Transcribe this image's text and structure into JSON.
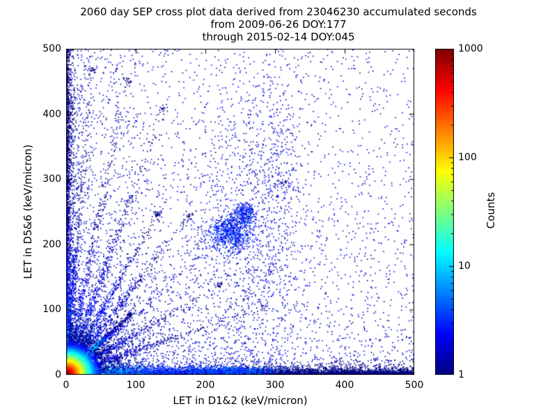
{
  "chart_data": {
    "type": "scatter",
    "title_lines": [
      "2060 day SEP cross plot data derived from 23046230 accumulated seconds",
      "from 2009-06-26 DOY:177",
      "through 2015-02-14 DOY:045"
    ],
    "xlabel": "LET in D1&2 (keV/micron)",
    "ylabel": "LET in D5&6 (keV/micron)",
    "xlim": [
      0,
      500
    ],
    "ylim": [
      0,
      500
    ],
    "x_tick_labels": [
      "0",
      "100",
      "200",
      "300",
      "400",
      "500"
    ],
    "y_tick_labels": [
      "0",
      "100",
      "200",
      "300",
      "400",
      "500"
    ],
    "grid": false,
    "colorbar": {
      "label": "Counts",
      "scale": "log",
      "min": 1,
      "max": 1000,
      "tick_labels": [
        "1000",
        "100",
        "10",
        "1"
      ],
      "colormap": "jet"
    },
    "generation": {
      "seed": 42,
      "clusters": [
        {
          "name": "ambient-broad",
          "type": "power2d",
          "count": 1700,
          "x_pow": 1.3,
          "y_pow": 1.3,
          "val": 1.5
        },
        {
          "name": "ambient-lower-left",
          "type": "power2d",
          "count": 4200,
          "x_pow": 2.6,
          "y_pow": 2.6,
          "val": 2
        },
        {
          "name": "left-axis-band",
          "type": "band_v",
          "count": 2500,
          "x0": 0,
          "x_scale": 3.5,
          "y_max": 500,
          "y_pow": 1.6,
          "val_base": 8,
          "val_y_falloff": 140
        },
        {
          "name": "bottom-axis-band",
          "type": "band_h",
          "count": 7000,
          "y0": 0,
          "y_scale": 4,
          "x_max": 500,
          "x_pow": 1.4,
          "val_base": 12,
          "val_x_falloff": 110
        },
        {
          "name": "bottom-blob",
          "type": "gauss",
          "count": 900,
          "cx": 232,
          "cy": 5,
          "sx": 38,
          "sy": 4,
          "val": 4
        },
        {
          "name": "mid-cluster",
          "type": "gauss",
          "count": 700,
          "cx": 236,
          "cy": 218,
          "sx": 16,
          "sy": 14,
          "val": 3
        },
        {
          "name": "mid-cluster-2",
          "type": "gauss",
          "count": 250,
          "cx": 257,
          "cy": 247,
          "sx": 8,
          "sy": 8,
          "val": 3
        },
        {
          "name": "vertical-column",
          "type": "gauss",
          "count": 800,
          "cx": 262,
          "cy": 210,
          "sx": 36,
          "sy": 140,
          "val": 2
        },
        {
          "name": "vertical-column-2",
          "type": "gauss",
          "count": 300,
          "cx": 306,
          "cy": 310,
          "sx": 16,
          "sy": 110,
          "val": 2
        },
        {
          "name": "diagonal-tail",
          "type": "ray",
          "count": 300,
          "angle_deg": 43,
          "length": 430,
          "len_scale": 130,
          "width": 4,
          "val_base": 3,
          "val_falloff": 400
        },
        {
          "name": "ray-1",
          "type": "ray",
          "count": 650,
          "angle_deg": 62,
          "length": 280,
          "len_scale": 85,
          "width": 2.5,
          "val_base": 6,
          "val_falloff": 130
        },
        {
          "name": "ray-2",
          "type": "ray",
          "count": 550,
          "angle_deg": 71,
          "length": 430,
          "len_scale": 125,
          "width": 3,
          "val_base": 5,
          "val_falloff": 160
        },
        {
          "name": "ray-3",
          "type": "ray",
          "count": 480,
          "angle_deg": 79,
          "length": 460,
          "len_scale": 140,
          "width": 3,
          "val_base": 5,
          "val_falloff": 170
        },
        {
          "name": "ray-4",
          "type": "ray",
          "count": 420,
          "angle_deg": 85.5,
          "length": 470,
          "len_scale": 150,
          "width": 2.5,
          "val_base": 4,
          "val_falloff": 200
        },
        {
          "name": "ray-5",
          "type": "ray",
          "count": 480,
          "angle_deg": 54,
          "length": 300,
          "len_scale": 90,
          "width": 3,
          "val_base": 5,
          "val_falloff": 130
        },
        {
          "name": "ray-6",
          "type": "ray",
          "count": 480,
          "angle_deg": 32,
          "length": 260,
          "len_scale": 75,
          "width": 2.5,
          "val_base": 5,
          "val_falloff": 110
        },
        {
          "name": "ray-7",
          "type": "ray",
          "count": 420,
          "angle_deg": 20,
          "length": 300,
          "len_scale": 90,
          "width": 2.5,
          "val_base": 4,
          "val_falloff": 130
        },
        {
          "name": "proton-diagonal",
          "type": "ray",
          "count": 2600,
          "angle_deg": 45,
          "length": 130,
          "len_scale": 28,
          "width": 1.8,
          "val_base": 120,
          "val_falloff": 22
        },
        {
          "name": "origin-core",
          "type": "radial_exp",
          "count": 15000,
          "cx": 2,
          "cy": 2,
          "scale": 8,
          "scale2": 28,
          "frac2": 0.35,
          "val_peak": 1000,
          "val_falloff": 7.5
        }
      ]
    }
  }
}
